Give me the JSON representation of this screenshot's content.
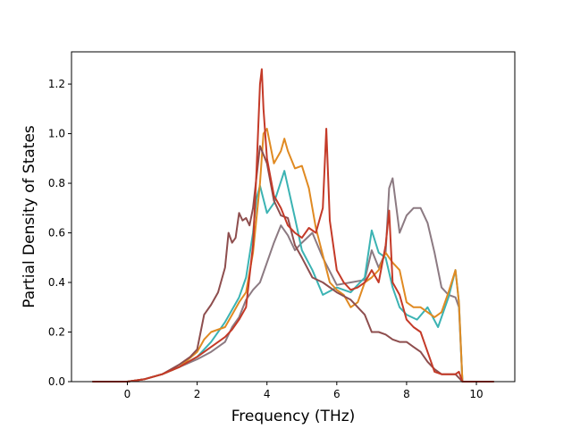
{
  "chart_data": {
    "type": "line",
    "title": "",
    "xlabel": "Frequency (THz)",
    "ylabel": "Partial Density of States",
    "xlim": [
      -1.6,
      11.1
    ],
    "ylim": [
      0.0,
      1.33
    ],
    "xticks": [
      0,
      2,
      4,
      6,
      8,
      10
    ],
    "yticks": [
      0.0,
      0.2,
      0.4,
      0.6,
      0.8,
      1.0,
      1.2
    ],
    "xtick_labels": [
      "0",
      "2",
      "4",
      "6",
      "8",
      "10"
    ],
    "ytick_labels": [
      "0.0",
      "0.2",
      "0.4",
      "0.6",
      "0.8",
      "1.0",
      "1.2"
    ],
    "grid": false,
    "legend": "none",
    "series": [
      {
        "color": "#8c7a82",
        "x": [
          -1.0,
          0.0,
          0.5,
          1.0,
          1.5,
          2.0,
          2.4,
          2.8,
          3.0,
          3.2,
          3.4,
          3.6,
          3.8,
          4.0,
          4.2,
          4.4,
          4.6,
          4.8,
          5.0,
          5.3,
          5.6,
          6.0,
          6.4,
          6.8,
          7.0,
          7.2,
          7.4,
          7.5,
          7.6,
          7.8,
          8.0,
          8.2,
          8.4,
          8.6,
          8.8,
          9.0,
          9.2,
          9.4,
          9.5,
          9.6,
          10.5
        ],
        "y": [
          0.0,
          0.0,
          0.01,
          0.03,
          0.06,
          0.09,
          0.12,
          0.16,
          0.22,
          0.26,
          0.33,
          0.37,
          0.4,
          0.48,
          0.56,
          0.63,
          0.59,
          0.53,
          0.56,
          0.6,
          0.5,
          0.39,
          0.4,
          0.41,
          0.53,
          0.46,
          0.52,
          0.78,
          0.82,
          0.6,
          0.67,
          0.7,
          0.7,
          0.64,
          0.52,
          0.38,
          0.35,
          0.34,
          0.3,
          0.0,
          0.0
        ]
      },
      {
        "color": "#3bb3b3",
        "x": [
          -1.0,
          0.0,
          0.5,
          1.0,
          1.5,
          2.0,
          2.4,
          2.8,
          3.0,
          3.2,
          3.4,
          3.6,
          3.7,
          3.8,
          4.0,
          4.2,
          4.5,
          4.8,
          5.0,
          5.3,
          5.6,
          6.0,
          6.4,
          6.8,
          7.0,
          7.2,
          7.4,
          7.6,
          7.8,
          8.0,
          8.3,
          8.6,
          8.9,
          9.0,
          9.2,
          9.4,
          9.5,
          9.6,
          10.5
        ],
        "y": [
          0.0,
          0.0,
          0.01,
          0.03,
          0.06,
          0.1,
          0.16,
          0.24,
          0.29,
          0.34,
          0.42,
          0.6,
          0.74,
          0.79,
          0.68,
          0.72,
          0.85,
          0.66,
          0.53,
          0.45,
          0.35,
          0.38,
          0.36,
          0.42,
          0.61,
          0.52,
          0.5,
          0.38,
          0.3,
          0.27,
          0.25,
          0.3,
          0.22,
          0.26,
          0.34,
          0.45,
          0.32,
          0.0,
          0.0
        ]
      },
      {
        "color": "#e08a22",
        "x": [
          -1.0,
          0.0,
          0.5,
          1.0,
          1.5,
          2.0,
          2.2,
          2.4,
          2.8,
          3.0,
          3.2,
          3.4,
          3.6,
          3.8,
          3.9,
          4.0,
          4.2,
          4.4,
          4.5,
          4.6,
          4.8,
          5.0,
          5.2,
          5.4,
          5.6,
          5.8,
          6.0,
          6.2,
          6.4,
          6.6,
          6.8,
          7.0,
          7.2,
          7.4,
          7.6,
          7.8,
          8.0,
          8.2,
          8.4,
          8.6,
          8.8,
          9.0,
          9.2,
          9.4,
          9.5,
          9.6,
          10.5
        ],
        "y": [
          0.0,
          0.0,
          0.01,
          0.03,
          0.06,
          0.12,
          0.17,
          0.2,
          0.22,
          0.27,
          0.32,
          0.36,
          0.52,
          0.8,
          1.0,
          1.02,
          0.88,
          0.93,
          0.98,
          0.93,
          0.86,
          0.87,
          0.78,
          0.62,
          0.51,
          0.4,
          0.37,
          0.35,
          0.3,
          0.32,
          0.4,
          0.42,
          0.45,
          0.52,
          0.48,
          0.45,
          0.32,
          0.3,
          0.3,
          0.28,
          0.26,
          0.28,
          0.36,
          0.45,
          0.32,
          0.0,
          0.0
        ]
      },
      {
        "color": "#8e4e4e",
        "x": [
          -1.0,
          0.0,
          0.5,
          1.0,
          1.5,
          1.8,
          2.0,
          2.1,
          2.2,
          2.4,
          2.6,
          2.8,
          2.9,
          3.0,
          3.1,
          3.2,
          3.3,
          3.4,
          3.5,
          3.6,
          3.8,
          4.0,
          4.2,
          4.4,
          4.6,
          4.8,
          5.0,
          5.3,
          5.6,
          6.0,
          6.4,
          6.8,
          7.0,
          7.2,
          7.4,
          7.6,
          7.8,
          8.0,
          8.2,
          8.4,
          8.6,
          8.8,
          9.0,
          9.4,
          9.6,
          10.5
        ],
        "y": [
          0.0,
          0.0,
          0.01,
          0.03,
          0.07,
          0.1,
          0.13,
          0.2,
          0.27,
          0.31,
          0.36,
          0.46,
          0.6,
          0.56,
          0.58,
          0.68,
          0.65,
          0.66,
          0.63,
          0.7,
          0.95,
          0.88,
          0.73,
          0.67,
          0.66,
          0.55,
          0.5,
          0.42,
          0.4,
          0.36,
          0.33,
          0.27,
          0.2,
          0.2,
          0.19,
          0.17,
          0.16,
          0.16,
          0.14,
          0.12,
          0.08,
          0.05,
          0.03,
          0.03,
          0.0,
          0.0
        ]
      },
      {
        "color": "#c43a28",
        "x": [
          -1.0,
          0.0,
          0.5,
          1.0,
          1.5,
          2.0,
          2.4,
          2.8,
          3.0,
          3.2,
          3.4,
          3.6,
          3.7,
          3.8,
          3.85,
          3.9,
          4.0,
          4.2,
          4.4,
          4.6,
          4.8,
          5.0,
          5.2,
          5.4,
          5.6,
          5.7,
          5.8,
          6.0,
          6.2,
          6.4,
          6.6,
          6.8,
          7.0,
          7.2,
          7.4,
          7.5,
          7.6,
          7.8,
          8.0,
          8.2,
          8.4,
          8.6,
          8.8,
          9.0,
          9.2,
          9.4,
          9.5,
          9.6,
          10.5
        ],
        "y": [
          0.0,
          0.0,
          0.01,
          0.03,
          0.06,
          0.1,
          0.14,
          0.18,
          0.21,
          0.25,
          0.3,
          0.55,
          0.85,
          1.2,
          1.26,
          1.1,
          0.9,
          0.75,
          0.7,
          0.63,
          0.6,
          0.58,
          0.62,
          0.6,
          0.7,
          1.02,
          0.65,
          0.45,
          0.4,
          0.37,
          0.38,
          0.4,
          0.45,
          0.4,
          0.55,
          0.69,
          0.4,
          0.35,
          0.25,
          0.22,
          0.2,
          0.12,
          0.04,
          0.03,
          0.03,
          0.03,
          0.04,
          0.0,
          0.0
        ]
      }
    ]
  }
}
